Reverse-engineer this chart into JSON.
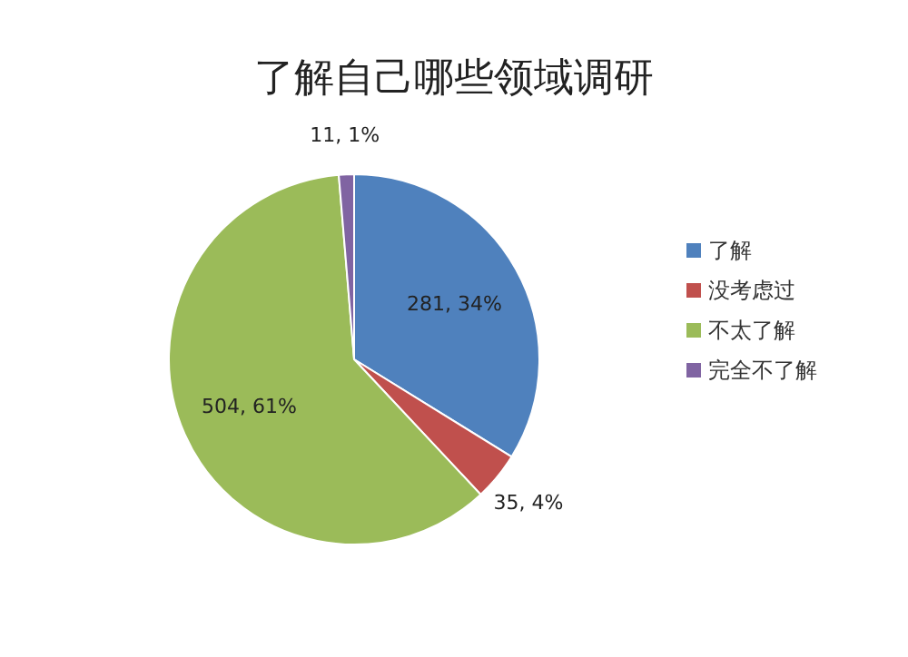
{
  "chart_data": {
    "type": "pie",
    "title": "了解自己哪些领域调研",
    "categories": [
      "了解",
      "没考虑过",
      "不太了解",
      "完全不了解"
    ],
    "values": [
      281,
      35,
      504,
      11
    ],
    "value_labels": [
      "281, 34%",
      "35, 4%",
      "504, 61%",
      "11, 1%"
    ],
    "colors": [
      "#4f81bd",
      "#c0504d",
      "#9bbb59",
      "#8064a2"
    ],
    "legend": "right"
  }
}
